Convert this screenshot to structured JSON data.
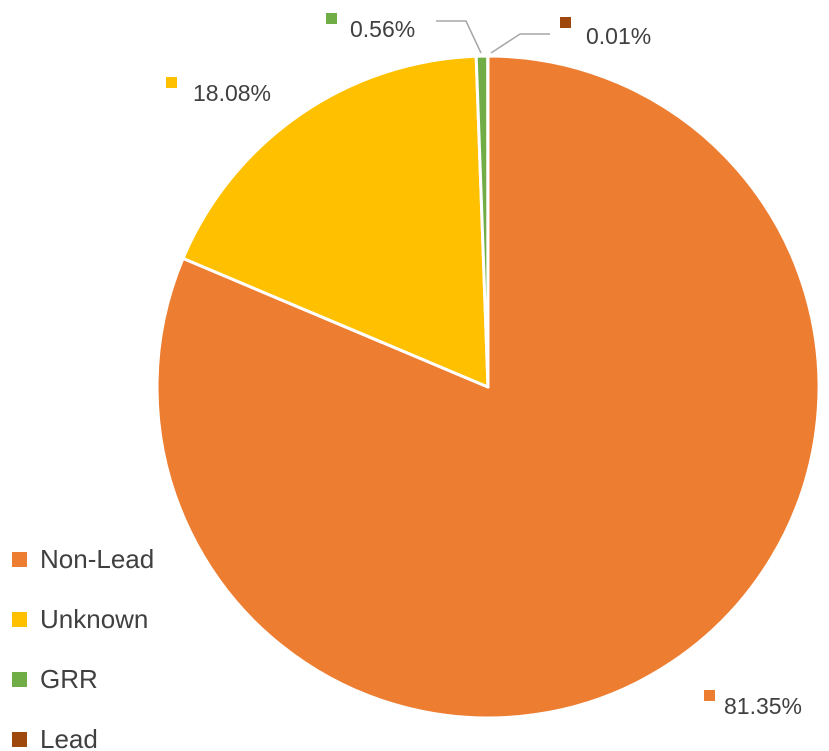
{
  "chart_data": {
    "type": "pie",
    "title": "",
    "legend_position": "bottom-left",
    "slices": [
      {
        "name": "Non-Lead",
        "value": 81.35,
        "label": "81.35%",
        "color": "#ED7D31"
      },
      {
        "name": "Unknown",
        "value": 18.08,
        "label": "18.08%",
        "color": "#FFC000"
      },
      {
        "name": "GRR",
        "value": 0.56,
        "label": "0.56%",
        "color": "#70AD47"
      },
      {
        "name": "Lead",
        "value": 0.01,
        "label": "0.01%",
        "color": "#9E480E"
      }
    ]
  }
}
